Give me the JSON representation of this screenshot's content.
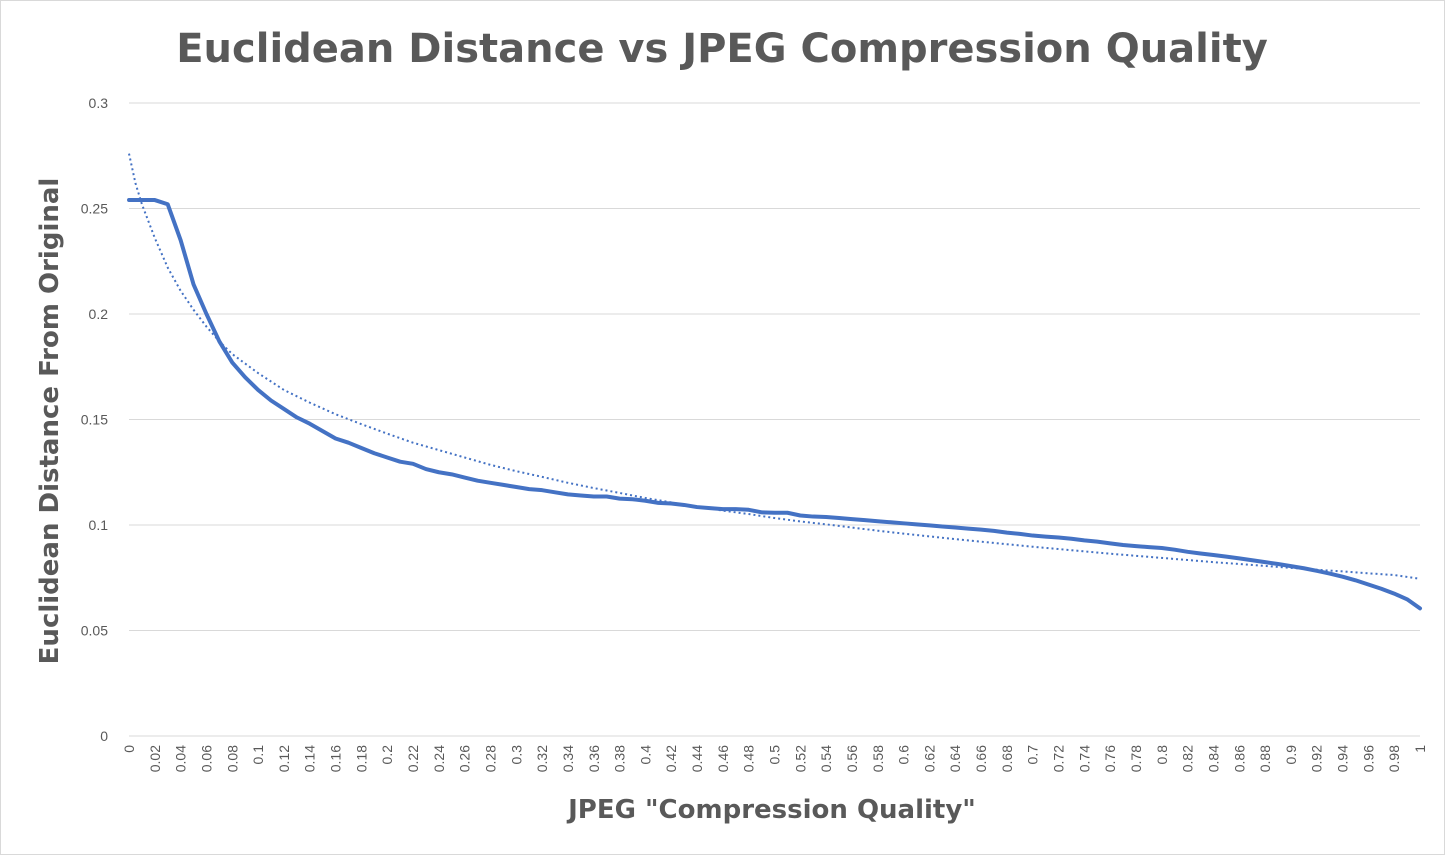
{
  "chart_data": {
    "type": "line",
    "title": "Euclidean Distance vs JPEG Compression Quality",
    "xlabel": "JPEG \"Compression Quality\"",
    "ylabel": "Euclidean Distance From Original",
    "xlim": [
      0,
      1
    ],
    "ylim": [
      0,
      0.3
    ],
    "grid": true,
    "legend": "none",
    "x_tick_labels": [
      "0",
      "0.02",
      "0.04",
      "0.06",
      "0.08",
      "0.1",
      "0.12",
      "0.14",
      "0.16",
      "0.18",
      "0.2",
      "0.22",
      "0.24",
      "0.26",
      "0.28",
      "0.3",
      "0.32",
      "0.34",
      "0.36",
      "0.38",
      "0.4",
      "0.42",
      "0.44",
      "0.46",
      "0.48",
      "0.5",
      "0.52",
      "0.54",
      "0.56",
      "0.58",
      "0.6",
      "0.62",
      "0.64",
      "0.66",
      "0.68",
      "0.7",
      "0.72",
      "0.74",
      "0.76",
      "0.78",
      "0.8",
      "0.82",
      "0.84",
      "0.86",
      "0.88",
      "0.9",
      "0.92",
      "0.94",
      "0.96",
      "0.98",
      "1"
    ],
    "y_tick_labels": [
      "0",
      "0.05",
      "0.1",
      "0.15",
      "0.2",
      "0.25",
      "0.3"
    ],
    "y_ticks": [
      0,
      0.05,
      0.1,
      0.15,
      0.2,
      0.25,
      0.3
    ],
    "series": [
      {
        "style": "solid",
        "color": "#4472c4",
        "x": [
          0,
          0.01,
          0.02,
          0.03,
          0.04,
          0.05,
          0.06,
          0.07,
          0.08,
          0.09,
          0.1,
          0.11,
          0.12,
          0.13,
          0.14,
          0.15,
          0.16,
          0.17,
          0.18,
          0.19,
          0.2,
          0.21,
          0.22,
          0.23,
          0.24,
          0.25,
          0.26,
          0.27,
          0.28,
          0.29,
          0.3,
          0.31,
          0.32,
          0.33,
          0.34,
          0.35,
          0.36,
          0.37,
          0.38,
          0.39,
          0.4,
          0.41,
          0.42,
          0.43,
          0.44,
          0.45,
          0.46,
          0.47,
          0.48,
          0.49,
          0.5,
          0.51,
          0.52,
          0.53,
          0.54,
          0.55,
          0.56,
          0.57,
          0.58,
          0.59,
          0.6,
          0.61,
          0.62,
          0.63,
          0.64,
          0.65,
          0.66,
          0.67,
          0.68,
          0.69,
          0.7,
          0.71,
          0.72,
          0.73,
          0.74,
          0.75,
          0.76,
          0.77,
          0.78,
          0.79,
          0.8,
          0.81,
          0.82,
          0.83,
          0.84,
          0.85,
          0.86,
          0.87,
          0.88,
          0.89,
          0.9,
          0.91,
          0.92,
          0.93,
          0.94,
          0.95,
          0.96,
          0.97,
          0.98,
          0.99,
          1
        ],
        "values": [
          0.254,
          0.254,
          0.254,
          0.252,
          0.235,
          0.214,
          0.2,
          0.187,
          0.177,
          0.17,
          0.164,
          0.159,
          0.155,
          0.151,
          0.148,
          0.1445,
          0.141,
          0.139,
          0.1365,
          0.134,
          0.132,
          0.13,
          0.129,
          0.1265,
          0.125,
          0.124,
          0.1225,
          0.121,
          0.12,
          0.119,
          0.118,
          0.117,
          0.1165,
          0.1155,
          0.1145,
          0.114,
          0.1135,
          0.1135,
          0.1125,
          0.1122,
          0.1115,
          0.1105,
          0.1102,
          0.1095,
          0.1085,
          0.108,
          0.1075,
          0.1075,
          0.1072,
          0.106,
          0.1058,
          0.1058,
          0.1045,
          0.104,
          0.1038,
          0.1033,
          0.1028,
          0.1023,
          0.1018,
          0.1013,
          0.1008,
          0.1003,
          0.0998,
          0.0993,
          0.0988,
          0.0983,
          0.0978,
          0.0972,
          0.0964,
          0.0958,
          0.095,
          0.0945,
          0.0941,
          0.0935,
          0.0927,
          0.0921,
          0.0913,
          0.0905,
          0.09,
          0.0895,
          0.0891,
          0.0883,
          0.0873,
          0.0865,
          0.0858,
          0.085,
          0.0842,
          0.0833,
          0.0824,
          0.0815,
          0.0805,
          0.0795,
          0.0783,
          0.077,
          0.0755,
          0.0738,
          0.0718,
          0.0698,
          0.0675,
          0.0648,
          0.0605
        ]
      },
      {
        "style": "dotted",
        "color": "#4472c4",
        "x": [
          0,
          0.005,
          0.01,
          0.015,
          0.02,
          0.03,
          0.04,
          0.05,
          0.06,
          0.07,
          0.08,
          0.1,
          0.12,
          0.14,
          0.16,
          0.18,
          0.2,
          0.22,
          0.24,
          0.26,
          0.28,
          0.3,
          0.32,
          0.34,
          0.36,
          0.38,
          0.4,
          0.42,
          0.44,
          0.46,
          0.48,
          0.5,
          0.52,
          0.54,
          0.56,
          0.58,
          0.6,
          0.62,
          0.64,
          0.66,
          0.68,
          0.7,
          0.72,
          0.74,
          0.76,
          0.78,
          0.8,
          0.82,
          0.84,
          0.86,
          0.88,
          0.9,
          0.92,
          0.94,
          0.96,
          0.98,
          1
        ],
        "values": [
          0.276,
          0.262,
          0.252,
          0.244,
          0.236,
          0.222,
          0.211,
          0.202,
          0.194,
          0.187,
          0.181,
          0.172,
          0.164,
          0.158,
          0.1525,
          0.1478,
          0.1433,
          0.139,
          0.1355,
          0.132,
          0.1285,
          0.1255,
          0.1228,
          0.12,
          0.1175,
          0.1152,
          0.1128,
          0.1107,
          0.1087,
          0.1068,
          0.1052,
          0.1033,
          0.1017,
          0.1003,
          0.0988,
          0.0973,
          0.0959,
          0.0946,
          0.0933,
          0.0921,
          0.0909,
          0.0897,
          0.0886,
          0.0875,
          0.0864,
          0.0854,
          0.0844,
          0.0834,
          0.0824,
          0.0815,
          0.0806,
          0.0797,
          0.0788,
          0.078,
          0.0771,
          0.0763,
          0.0745
        ]
      }
    ]
  }
}
